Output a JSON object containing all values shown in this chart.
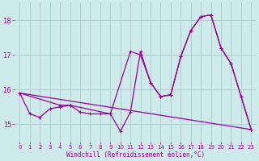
{
  "title": "",
  "xlabel": "Windchill (Refroidissement éolien,°C)",
  "bg_color": "#ceeaea",
  "grid_color": "#aacece",
  "line_color": "#990099",
  "xlim": [
    -0.5,
    23.5
  ],
  "ylim": [
    14.5,
    18.5
  ],
  "yticks": [
    15,
    16,
    17,
    18
  ],
  "xticks": [
    0,
    1,
    2,
    3,
    4,
    5,
    6,
    7,
    8,
    9,
    10,
    11,
    12,
    13,
    14,
    15,
    16,
    17,
    18,
    19,
    20,
    21,
    22,
    23
  ],
  "series_main_x": [
    0,
    1,
    2,
    3,
    4,
    5,
    6,
    7,
    8,
    9,
    10,
    11,
    12,
    13,
    14,
    15,
    16,
    17,
    18,
    19,
    20,
    21,
    22,
    23
  ],
  "series_main_y": [
    15.9,
    15.3,
    15.2,
    15.45,
    15.5,
    15.55,
    15.35,
    15.3,
    15.3,
    15.3,
    14.8,
    15.35,
    17.1,
    16.2,
    15.8,
    15.85,
    16.95,
    17.7,
    18.1,
    18.15,
    17.2,
    16.75,
    15.8,
    14.85
  ],
  "series_smooth_x": [
    0,
    4,
    5,
    9,
    11,
    12,
    13,
    14,
    15,
    16,
    17,
    18,
    19,
    20,
    21,
    22,
    23
  ],
  "series_smooth_y": [
    15.9,
    15.55,
    15.55,
    15.3,
    17.1,
    17.0,
    16.2,
    15.8,
    15.85,
    16.95,
    17.7,
    18.1,
    18.15,
    17.2,
    16.75,
    15.8,
    14.85
  ],
  "series_trend_x": [
    0,
    23
  ],
  "series_trend_y": [
    15.9,
    14.85
  ]
}
